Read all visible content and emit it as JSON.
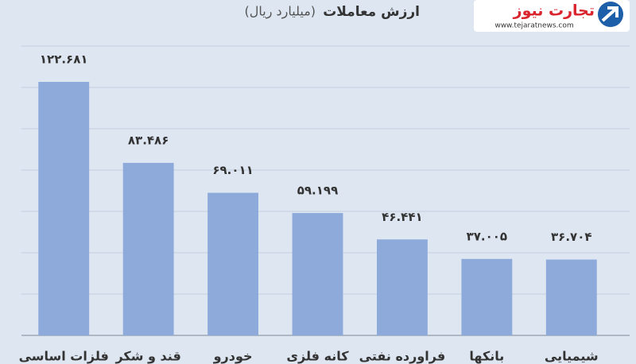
{
  "logo": {
    "name": "تجارت نیوز",
    "url": "www.tejaratnews.com"
  },
  "chart_data": {
    "type": "bar",
    "title": "ارزش معاملات",
    "subtitle": "(میلیارد ریال)",
    "categories": [
      "فلزات اساسی",
      "قند و شکر",
      "خودرو",
      "کانه فلزی",
      "فراورده نفتی",
      "بانکها",
      "شیمیایی"
    ],
    "values": [
      122.681,
      83.486,
      69.011,
      59.199,
      46.441,
      37.005,
      36.704
    ],
    "value_labels": [
      "۱۲۲.۶۸۱",
      "۸۳.۴۸۶",
      "۶۹.۰۱۱",
      "۵۹.۱۹۹",
      "۴۶.۴۴۱",
      "۳۷.۰۰۵",
      "۳۶.۷۰۴"
    ],
    "color": "#8eaadb",
    "ylim": [
      0,
      140
    ],
    "yticks": [
      0,
      20,
      40,
      60,
      80,
      100,
      120,
      140
    ],
    "grid": true
  }
}
